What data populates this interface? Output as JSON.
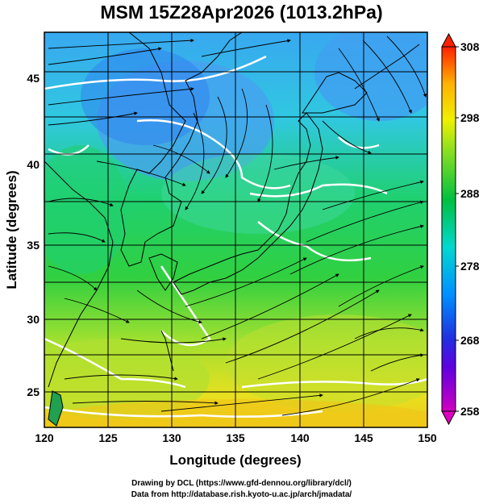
{
  "title": "MSM 15Z28Apr2026 (1013.2hPa)",
  "map": {
    "lon_range": [
      120,
      150
    ],
    "lat_range": [
      22.4,
      47.6
    ],
    "x_ticks": [
      "120",
      "125",
      "130",
      "135",
      "140",
      "145",
      "150"
    ],
    "y_ticks": [
      "25",
      "30",
      "35",
      "40",
      "45"
    ],
    "xlabel": "Longitude (degrees)",
    "ylabel": "Latitude  (degrees)",
    "field": "temperature shading with streamlines",
    "colorbar": {
      "min": 258,
      "max": 308,
      "labels": [
        "308",
        "298",
        "288",
        "278",
        "268",
        "258"
      ],
      "colors": [
        "#d000c0",
        "#3010d8",
        "#0090ff",
        "#00d8d0",
        "#00c040",
        "#90e020",
        "#f0f000",
        "#ffb000",
        "#ff2000"
      ]
    }
  },
  "credit": {
    "line1": "Drawing by DCL (https://www.gfd-dennou.org/library/dcl/)",
    "line2": "Data from http://database.rish.kyoto-u.ac.jp/arch/jmadata/"
  }
}
